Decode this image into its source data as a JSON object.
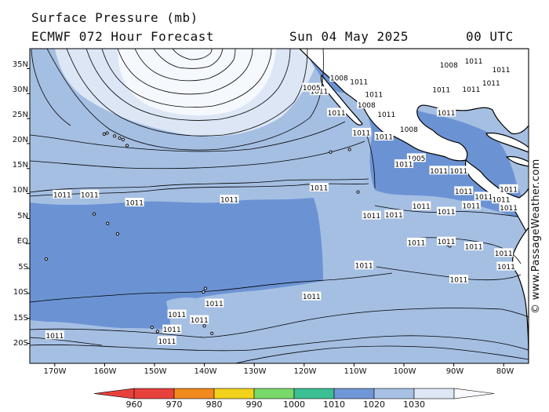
{
  "title": {
    "line1": "Surface Pressure (mb)",
    "line2": "ECMWF 072 Hour Forecast",
    "date": "Sun 04 May 2025",
    "time": "00 UTC"
  },
  "credit": "© www.PassageWeather.com",
  "lat_labels": [
    "35N",
    "30N",
    "25N",
    "20N",
    "15N",
    "10N",
    "5N",
    "EQ",
    "5S",
    "10S",
    "15S",
    "20S"
  ],
  "lon_labels": [
    "170W",
    "160W",
    "150W",
    "140W",
    "130W",
    "120W",
    "110W",
    "100W",
    "90W",
    "80W"
  ],
  "colorbar": {
    "labels": [
      "960",
      "970",
      "980",
      "990",
      "1000",
      "1010",
      "1020",
      "1030"
    ],
    "colors": [
      "#e8413c",
      "#f08a1c",
      "#f2d21a",
      "#79d86a",
      "#3cbf93",
      "#6f96d6",
      "#a7c1e5",
      "#dde7f6"
    ]
  },
  "map_colors": {
    "band_1000_1010": "#6b93d4",
    "band_1010_1020": "#a5bfe3",
    "band_1020_1030": "#dce6f5",
    "band_high": "#f5f8fd",
    "land": "#ffffff"
  },
  "isobar_labels": [
    {
      "text": "1011",
      "lon": -168.5,
      "lat": 9.8
    },
    {
      "text": "1011",
      "lon": -163,
      "lat": 9.8
    },
    {
      "text": "1011",
      "lon": -154,
      "lat": 8.2
    },
    {
      "text": "1011",
      "lon": -135,
      "lat": 8.8
    },
    {
      "text": "1011",
      "lon": -117,
      "lat": 11.2
    },
    {
      "text": "1011",
      "lon": -118.5,
      "lat": -10.6
    },
    {
      "text": "1011",
      "lon": -138,
      "lat": -12
    },
    {
      "text": "1011",
      "lon": -145.5,
      "lat": -14.2
    },
    {
      "text": "1011",
      "lon": -141,
      "lat": -15.3
    },
    {
      "text": "1011",
      "lon": -146.5,
      "lat": -17.2
    },
    {
      "text": "1011",
      "lon": -147.5,
      "lat": -19.5
    },
    {
      "text": "1011",
      "lon": -170,
      "lat": -18.4
    },
    {
      "text": "1011",
      "lon": -117,
      "lat": 30.5
    },
    {
      "text": "1008",
      "lon": -113,
      "lat": 33.2
    },
    {
      "text": "1005",
      "lon": -118.5,
      "lat": 31.2
    },
    {
      "text": "1011",
      "lon": -109,
      "lat": 32.4
    },
    {
      "text": "1011",
      "lon": -106,
      "lat": 29.9
    },
    {
      "text": "1008",
      "lon": -107.5,
      "lat": 27.8
    },
    {
      "text": "1011",
      "lon": -113.5,
      "lat": 26.2
    },
    {
      "text": "1011",
      "lon": -103.5,
      "lat": 25.9
    },
    {
      "text": "1011",
      "lon": -108.5,
      "lat": 22.2
    },
    {
      "text": "1011",
      "lon": -104,
      "lat": 21.4
    },
    {
      "text": "1008",
      "lon": -99,
      "lat": 22.9
    },
    {
      "text": "1005",
      "lon": -97.5,
      "lat": 17.1
    },
    {
      "text": "1011",
      "lon": -100,
      "lat": 15.9
    },
    {
      "text": "1011",
      "lon": -93,
      "lat": 14.6
    },
    {
      "text": "1011",
      "lon": -89,
      "lat": 14.6
    },
    {
      "text": "1011",
      "lon": -88,
      "lat": 10.5
    },
    {
      "text": "1011",
      "lon": -84,
      "lat": 9.4
    },
    {
      "text": "1011",
      "lon": -80.5,
      "lat": 8.8
    },
    {
      "text": "1011",
      "lon": -96.5,
      "lat": 7.5
    },
    {
      "text": "1011",
      "lon": -91.5,
      "lat": 6.4
    },
    {
      "text": "1011",
      "lon": -86.5,
      "lat": 7.6
    },
    {
      "text": "1011",
      "lon": -102,
      "lat": 5.8
    },
    {
      "text": "1011",
      "lon": -106.5,
      "lat": 5.6
    },
    {
      "text": "1011",
      "lon": -97.5,
      "lat": 0.2
    },
    {
      "text": "1011",
      "lon": -91.5,
      "lat": 0.4
    },
    {
      "text": "1011",
      "lon": -86,
      "lat": -0.6
    },
    {
      "text": "1011",
      "lon": -80,
      "lat": -1.9
    },
    {
      "text": "1011",
      "lon": -89,
      "lat": -7.2
    },
    {
      "text": "1011",
      "lon": -108,
      "lat": -4.4
    },
    {
      "text": "1011",
      "lon": -86,
      "lat": 36.6
    },
    {
      "text": "1008",
      "lon": -91,
      "lat": 35.8
    },
    {
      "text": "1011",
      "lon": -80.5,
      "lat": 34.8
    },
    {
      "text": "1011",
      "lon": -82.5,
      "lat": 32.2
    },
    {
      "text": "1011",
      "lon": -92.5,
      "lat": 30.8
    },
    {
      "text": "1011",
      "lon": -86.5,
      "lat": 30.9
    },
    {
      "text": "1011",
      "lon": -91.5,
      "lat": 26.2
    },
    {
      "text": "1011",
      "lon": -79,
      "lat": 10.9
    },
    {
      "text": "1011",
      "lon": -79,
      "lat": 7.2
    },
    {
      "text": "1011",
      "lon": -79.5,
      "lat": -4.6
    }
  ],
  "islands": [
    {
      "name": "Hawaii",
      "lon": -155.5,
      "lat": 19.6
    },
    {
      "name": "Maui",
      "lon": -156.3,
      "lat": 20.8
    },
    {
      "name": "Molokai",
      "lon": -157,
      "lat": 21.1
    },
    {
      "name": "Oahu",
      "lon": -158,
      "lat": 21.5
    },
    {
      "name": "Kauai",
      "lon": -159.5,
      "lat": 22.1
    },
    {
      "name": "Niihau",
      "lon": -160.1,
      "lat": 21.9
    },
    {
      "name": "Marquesas",
      "lon": -139.8,
      "lat": -9
    },
    {
      "name": "Marquesas2",
      "lon": -140.2,
      "lat": -9.7
    },
    {
      "name": "Tuamotu",
      "lon": -142,
      "lat": -15.5
    },
    {
      "name": "Tuamotu2",
      "lon": -140,
      "lat": -16.5
    },
    {
      "name": "Tuamotu3",
      "lon": -138.5,
      "lat": -18
    },
    {
      "name": "Tahiti",
      "lon": -149.4,
      "lat": -17.6
    },
    {
      "name": "Moorea",
      "lon": -150.5,
      "lat": -16.8
    },
    {
      "name": "Galapagos",
      "lon": -90.8,
      "lat": -0.5
    },
    {
      "name": "Galapagos2",
      "lon": -91.3,
      "lat": -0.2
    },
    {
      "name": "Clipperton",
      "lon": -109.2,
      "lat": 10.3
    },
    {
      "name": "Line1",
      "lon": -157.4,
      "lat": 1.9
    },
    {
      "name": "Line2",
      "lon": -159.4,
      "lat": 4
    },
    {
      "name": "Line3",
      "lon": -162.1,
      "lat": 5.9
    },
    {
      "name": "Phoenix",
      "lon": -171.7,
      "lat": -3.1
    },
    {
      "name": "Revillagigedo",
      "lon": -110.9,
      "lat": 18.8
    },
    {
      "name": "Revillagigedo2",
      "lon": -114.7,
      "lat": 18.3
    }
  ]
}
